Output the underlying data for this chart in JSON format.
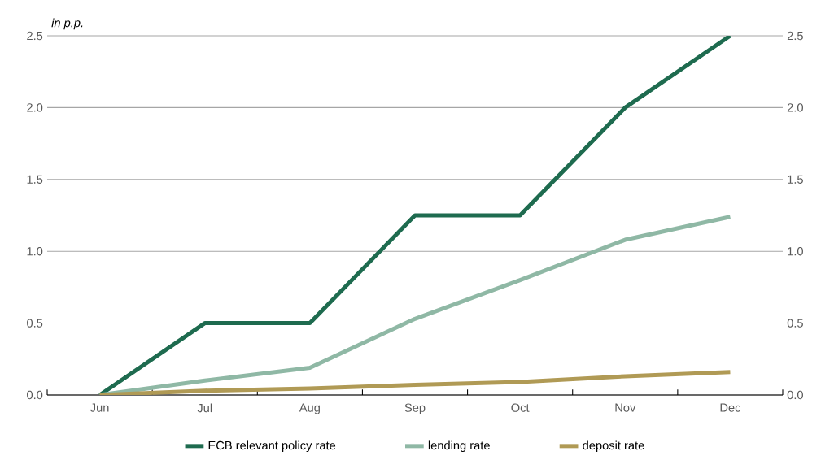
{
  "chart_data": {
    "type": "line",
    "ylabel": "*in p.p.*",
    "categories": [
      "Jun",
      "Jul",
      "Aug",
      "Sep",
      "Oct",
      "Nov",
      "Dec"
    ],
    "series": [
      {
        "name": "ECB relevant policy rate",
        "color": "#1e6b4f",
        "values": [
          0,
          0.5,
          0.5,
          1.25,
          1.25,
          2.0,
          2.5
        ]
      },
      {
        "name": "lending rate",
        "color": "#8fb8a5",
        "values": [
          0,
          0.1,
          0.19,
          0.53,
          0.8,
          1.08,
          1.24
        ]
      },
      {
        "name": "deposit rate",
        "color": "#b09a55",
        "values": [
          0,
          0.03,
          0.045,
          0.07,
          0.09,
          0.13,
          0.16
        ]
      }
    ],
    "ylim": [
      0,
      2.5
    ],
    "yticks": [
      {
        "value": 0,
        "label": "0.0"
      },
      {
        "value": 0.5,
        "label": "0.5"
      },
      {
        "value": 1,
        "label": "1.0"
      },
      {
        "value": 1.5,
        "label": "1.5"
      },
      {
        "value": 2,
        "label": "2.0"
      },
      {
        "value": 2.5,
        "label": "2.5"
      }
    ],
    "y2lim": [
      0,
      2.5
    ],
    "y2ticks": [
      {
        "value": 0,
        "label": "0.0"
      },
      {
        "value": 0.5,
        "label": "0.5"
      },
      {
        "value": 1,
        "label": "1.0"
      },
      {
        "value": 1.5,
        "label": "1.5"
      },
      {
        "value": 2,
        "label": "2.0"
      },
      {
        "value": 2.5,
        "label": "2.5"
      }
    ],
    "grid": "y",
    "legend": "bottom",
    "marker": "none",
    "line_style": "solid"
  }
}
